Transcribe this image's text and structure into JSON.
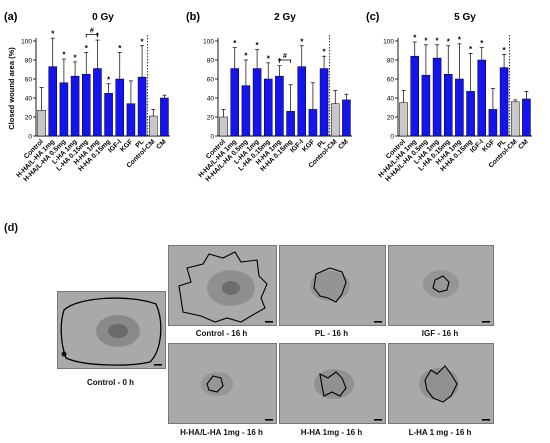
{
  "panel_d_label": "(d)",
  "photos": [
    {
      "caption": "Control - 0 h"
    },
    {
      "caption": "Control - 16 h"
    },
    {
      "caption": "PL - 16 h"
    },
    {
      "caption": "IGF - 16 h"
    },
    {
      "caption": "H-HA/L-HA 1mg - 16 h"
    },
    {
      "caption": "H-HA 1mg - 16 h"
    },
    {
      "caption": "L-HA 1 mg - 16 h"
    }
  ],
  "colors": {
    "treatment": "#1414ee",
    "control": "#c8c8c8",
    "border": "#000000"
  },
  "chart_data": [
    {
      "type": "bar",
      "panel": "(a)",
      "title": "0 Gy",
      "ylabel": "Closed wound area (%)",
      "ylim": [
        0,
        100
      ],
      "yticks": [
        0,
        20,
        40,
        60,
        80,
        100
      ],
      "categories": [
        "Control",
        "H-HA/L-HA 1mg",
        "H-HA/L-HA 0.5mg",
        "L-HA 1mg",
        "L-HA 0.15mg",
        "H-HA 1mg",
        "H-HA 0.15mg",
        "IGF-I",
        "KGF",
        "PL",
        "Control-CM",
        "CM"
      ],
      "values": [
        27,
        73,
        56,
        63,
        65,
        71,
        45,
        60,
        34,
        62,
        21,
        40
      ],
      "errors": [
        24,
        30,
        25,
        15,
        23,
        30,
        10,
        28,
        24,
        33,
        7,
        3
      ],
      "colors": [
        "#c8c8c8",
        "#1414ee",
        "#1414ee",
        "#1414ee",
        "#1414ee",
        "#1414ee",
        "#1414ee",
        "#1414ee",
        "#1414ee",
        "#1414ee",
        "#c8c8c8",
        "#1414ee"
      ],
      "stars": [
        "",
        "*",
        "*",
        "*",
        "*",
        "*",
        "*",
        "*",
        "",
        "*",
        "",
        ""
      ],
      "bracket": {
        "from": 4,
        "to": 5,
        "label": "#"
      },
      "divider_after": 9
    },
    {
      "type": "bar",
      "panel": "(b)",
      "title": "2 Gy",
      "ylabel": "",
      "ylim": [
        0,
        100
      ],
      "yticks": [
        0,
        20,
        40,
        60,
        80,
        100
      ],
      "categories": [
        "Control",
        "H-HA/L-HA 1mg",
        "H-HA/L-HA 0.5mg",
        "L-HA 1mg",
        "L-HA 0.15mg",
        "H-HA 1mg",
        "H-HA 0.15mg",
        "IGF-I",
        "KGF",
        "PL",
        "Control-CM",
        "CM"
      ],
      "values": [
        20,
        71,
        53,
        71,
        60,
        63,
        26,
        73,
        28,
        71,
        34,
        38
      ],
      "errors": [
        8,
        22,
        27,
        20,
        17,
        11,
        28,
        22,
        28,
        13,
        14,
        6
      ],
      "colors": [
        "#c8c8c8",
        "#1414ee",
        "#1414ee",
        "#1414ee",
        "#1414ee",
        "#1414ee",
        "#1414ee",
        "#1414ee",
        "#1414ee",
        "#1414ee",
        "#c8c8c8",
        "#1414ee"
      ],
      "stars": [
        "",
        "*",
        "*",
        "*",
        "*",
        "*",
        "",
        "*",
        "",
        "*",
        "",
        ""
      ],
      "bracket": {
        "from": 5,
        "to": 6,
        "label": "#"
      },
      "divider_after": 9
    },
    {
      "type": "bar",
      "panel": "(c)",
      "title": "5 Gy",
      "ylabel": "",
      "ylim": [
        0,
        100
      ],
      "yticks": [
        0,
        20,
        40,
        60,
        80,
        100
      ],
      "categories": [
        "Control",
        "H-HA/L-HA 1mg",
        "H-HA/L-HA 0.5mg",
        "L-HA 1mg",
        "L-HA 0.15mg",
        "H-HA 1mg",
        "H-HA 0.15mg",
        "IGF-I",
        "KGF",
        "PL",
        "Control-CM",
        "CM"
      ],
      "values": [
        35,
        84,
        64,
        82,
        65,
        60,
        47,
        80,
        28,
        72,
        36,
        39
      ],
      "errors": [
        13,
        15,
        32,
        14,
        30,
        37,
        40,
        13,
        22,
        14,
        2,
        8
      ],
      "colors": [
        "#c8c8c8",
        "#1414ee",
        "#1414ee",
        "#1414ee",
        "#1414ee",
        "#1414ee",
        "#1414ee",
        "#1414ee",
        "#1414ee",
        "#1414ee",
        "#c8c8c8",
        "#1414ee"
      ],
      "stars": [
        "",
        "*",
        "*",
        "*",
        "*",
        "*",
        "*",
        "*",
        "",
        "*",
        "",
        ""
      ],
      "bracket": null,
      "divider_after": 9
    }
  ]
}
